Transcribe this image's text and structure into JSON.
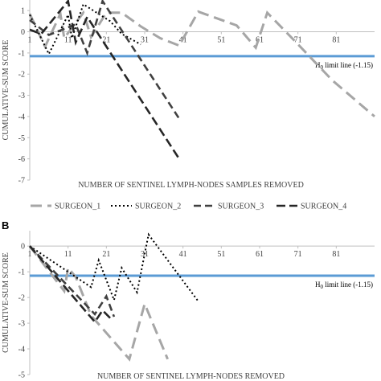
{
  "colors": {
    "surgeon_1": "#a6a6a6",
    "surgeon_2": "#000000",
    "surgeon_3": "#404040",
    "surgeon_4": "#262626",
    "limit_line": "#5b9bd5",
    "axis": "#bfbfbf"
  },
  "legend": {
    "items": [
      "SURGEON_1",
      "SURGEON_2",
      "SURGEON_3",
      "SURGEON_4"
    ]
  },
  "chart_data": [
    {
      "type": "line",
      "panel_label": "",
      "xlabel": "NUMBER OF SENTINEL LYMPH-NODES SAMPLES REMOVED",
      "ylabel": "CUMULATIVE-SUM SCORE",
      "x_ticks": [
        "1",
        "11",
        "21",
        "31",
        "41",
        "51",
        "61",
        "71",
        "81"
      ],
      "y_ticks": [
        "-7",
        "-6",
        "-5",
        "-4",
        "-3",
        "-2",
        "-1",
        "0",
        "1"
      ],
      "xlim": [
        1,
        91
      ],
      "ylim": [
        -7,
        1.5
      ],
      "limit_line": {
        "y": -1.15,
        "label_prefix": "H",
        "label_sub": "0",
        "label_suffix": " limit line (-1.15)"
      },
      "series": [
        {
          "name": "SURGEON_1",
          "points": [
            [
              1,
              0.85
            ],
            [
              5,
              -0.7
            ],
            [
              9,
              0.85
            ],
            [
              10,
              -0.3
            ],
            [
              15,
              0.9
            ],
            [
              17,
              -0.25
            ],
            [
              21,
              0.9
            ],
            [
              25,
              0.9
            ],
            [
              30,
              0.25
            ],
            [
              35,
              -0.3
            ],
            [
              40,
              -0.65
            ],
            [
              45,
              0.95
            ],
            [
              55,
              0.3
            ],
            [
              60,
              -0.75
            ],
            [
              63,
              0.9
            ],
            [
              70,
              -0.4
            ],
            [
              80,
              -2.3
            ],
            [
              91,
              -4.0
            ]
          ]
        },
        {
          "name": "SURGEON_2",
          "points": [
            [
              1,
              0.8
            ],
            [
              6,
              -1.05
            ],
            [
              11,
              0.8
            ],
            [
              12,
              -0.3
            ],
            [
              15,
              1.3
            ],
            [
              22,
              0.5
            ],
            [
              25,
              -0.1
            ],
            [
              30,
              -0.6
            ]
          ]
        },
        {
          "name": "SURGEON_3",
          "points": [
            [
              1,
              0.55
            ],
            [
              6,
              -0.15
            ],
            [
              13,
              0.35
            ],
            [
              16,
              -1.0
            ],
            [
              20,
              1.45
            ],
            [
              40,
              -4.1
            ]
          ]
        },
        {
          "name": "SURGEON_4",
          "points": [
            [
              1,
              0.1
            ],
            [
              4,
              -0.1
            ],
            [
              11,
              1.45
            ],
            [
              13,
              -0.5
            ],
            [
              16,
              0.7
            ],
            [
              40,
              -6.0
            ]
          ]
        }
      ]
    },
    {
      "type": "line",
      "panel_label": "B",
      "xlabel": "NUMBER OF SENTINEL LYMPH-NODES REMOVED",
      "ylabel": "CUMULATIVE-SUM SCORE",
      "x_ticks": [
        "1",
        "11",
        "21",
        "31",
        "41",
        "51",
        "61",
        "71",
        "81"
      ],
      "y_ticks": [
        "-5",
        "-4",
        "-3",
        "-2",
        "-1",
        "0"
      ],
      "xlim": [
        1,
        91
      ],
      "ylim": [
        -5,
        0.6
      ],
      "limit_line": {
        "y": -1.15,
        "label_prefix": "H",
        "label_sub": "0",
        "label_suffix": " limit line (-1.15)"
      },
      "series": [
        {
          "name": "SURGEON_1",
          "points": [
            [
              1,
              0
            ],
            [
              10,
              -1.75
            ],
            [
              11,
              -0.85
            ],
            [
              13,
              -1.2
            ],
            [
              17,
              -2.7
            ],
            [
              27,
              -4.4
            ],
            [
              31,
              -2.25
            ],
            [
              37,
              -4.4
            ]
          ]
        },
        {
          "name": "SURGEON_2",
          "points": [
            [
              1,
              0
            ],
            [
              17,
              -1.6
            ],
            [
              19,
              -0.55
            ],
            [
              23,
              -2.1
            ],
            [
              25,
              -0.85
            ],
            [
              29,
              -1.8
            ],
            [
              32,
              0.45
            ],
            [
              45,
              -2.15
            ]
          ]
        },
        {
          "name": "SURGEON_3",
          "points": [
            [
              1,
              0
            ],
            [
              18,
              -2.65
            ],
            [
              21,
              -1.95
            ],
            [
              23,
              -2.75
            ]
          ]
        },
        {
          "name": "SURGEON_4",
          "points": [
            [
              1,
              0
            ],
            [
              18,
              -2.95
            ],
            [
              20,
              -2.5
            ],
            [
              22,
              -2.8
            ]
          ]
        }
      ]
    }
  ]
}
